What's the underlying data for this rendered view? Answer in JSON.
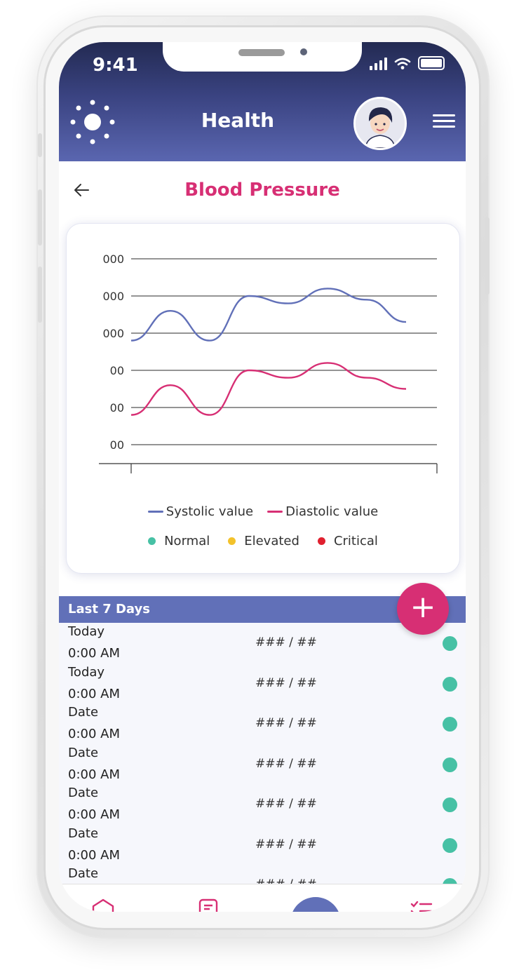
{
  "status_bar": {
    "time": "9:41"
  },
  "header": {
    "title": "Health"
  },
  "page": {
    "title": "Blood Pressure"
  },
  "chart_data": {
    "type": "line",
    "y_tick_labels": [
      "000",
      "000",
      "000",
      "00",
      "00",
      "00"
    ],
    "x": [
      0,
      1,
      2,
      3,
      4,
      5,
      6,
      7
    ],
    "series": [
      {
        "name": "Systolic value",
        "color": "#6170b8",
        "values": [
          2.8,
          3.6,
          2.8,
          4.0,
          3.8,
          4.2,
          3.9,
          3.3
        ]
      },
      {
        "name": "Diastolic value",
        "color": "#d72f74",
        "values": [
          0.8,
          1.6,
          0.8,
          2.0,
          1.8,
          2.2,
          1.8,
          1.5
        ]
      }
    ],
    "legend_status": [
      {
        "label": "Normal",
        "color": "#47c1a5"
      },
      {
        "label": "Elevated",
        "color": "#f3c22b"
      },
      {
        "label": "Critical",
        "color": "#e0202f"
      }
    ],
    "grid": true
  },
  "list": {
    "header": "Last 7 Days",
    "add_label": "+",
    "rows": [
      {
        "date": "Today",
        "time": "0:00 AM",
        "value": "### / ##",
        "status": "#47c1a5"
      },
      {
        "date": "Today",
        "time": "0:00 AM",
        "value": "### / ##",
        "status": "#47c1a5"
      },
      {
        "date": "Date",
        "time": "0:00 AM",
        "value": "### / ##",
        "status": "#47c1a5"
      },
      {
        "date": "Date",
        "time": "0:00 AM",
        "value": "### / ##",
        "status": "#47c1a5"
      },
      {
        "date": "Date",
        "time": "0:00 AM",
        "value": "### / ##",
        "status": "#47c1a5"
      },
      {
        "date": "Date",
        "time": "0:00 AM",
        "value": "### / ##",
        "status": "#47c1a5"
      },
      {
        "date": "Date",
        "time": "",
        "value": "### / ##",
        "status": "#47c1a5"
      }
    ]
  },
  "nav": {
    "items": [
      "home-icon",
      "notes-icon",
      "center-action",
      "checklist-icon"
    ]
  },
  "colors": {
    "accent": "#d72f74",
    "primary": "#6170b8",
    "header_dark": "#232a52"
  }
}
